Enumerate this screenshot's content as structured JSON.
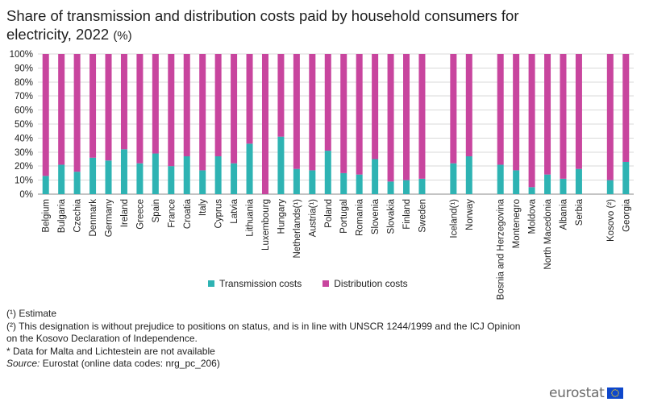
{
  "title": "Share of transmission and distribution costs paid by household consumers for electricity, 2022",
  "title_unit": "(%)",
  "chart_data": {
    "type": "bar",
    "stacked": true,
    "title": "Share of transmission and distribution costs paid by household consumers for electricity, 2022 (%)",
    "ylim": [
      0,
      100
    ],
    "y_ticks": [
      "0%",
      "10%",
      "20%",
      "30%",
      "40%",
      "50%",
      "60%",
      "70%",
      "80%",
      "90%",
      "100%"
    ],
    "categories": [
      "Belgium",
      "Bulgaria",
      "Czechia",
      "Denmark",
      "Germany",
      "Ireland",
      "Greece",
      "Spain",
      "France",
      "Croatia",
      "Italy",
      "Cyprus",
      "Latvia",
      "Lithuania",
      "Luxembourg",
      "Hungary",
      "Netherlands(¹)",
      "Austria(¹)",
      "Poland",
      "Portugal",
      "Romania",
      "Slovenia",
      "Slovakia",
      "Finland",
      "Sweden",
      "",
      "Iceland(¹)",
      "Norway",
      "",
      "Bosnia and Herzegovina",
      "Montenegro",
      "Moldova",
      "North Macedonia",
      "Albania",
      "Serbia",
      "",
      "Kosovo (²)",
      "Georgia"
    ],
    "series": [
      {
        "name": "Transmission costs",
        "color": "#2eb3b3",
        "values": [
          13,
          21,
          16,
          26,
          24,
          32,
          22,
          29,
          20,
          27,
          17,
          27,
          22,
          36,
          0,
          41,
          18,
          17,
          31,
          15,
          14,
          25,
          9,
          10,
          11,
          null,
          22,
          27,
          null,
          21,
          17,
          5,
          14,
          11,
          18,
          null,
          10,
          23
        ]
      },
      {
        "name": "Distribution costs",
        "color": "#c8459e",
        "values": [
          87,
          79,
          84,
          74,
          76,
          68,
          78,
          71,
          80,
          73,
          83,
          73,
          78,
          64,
          100,
          59,
          82,
          83,
          69,
          85,
          86,
          75,
          91,
          90,
          89,
          null,
          78,
          73,
          null,
          79,
          83,
          95,
          86,
          89,
          82,
          null,
          90,
          77
        ]
      }
    ],
    "legend_position": "bottom"
  },
  "notes": {
    "note1": "(¹) Estimate",
    "note2": "(²) This designation is without prejudice to positions on status, and is in line with UNSCR 1244/1999 and the ICJ Opinion on the Kosovo Declaration of Independence.",
    "note3": "* Data for Malta and Lichtestein are not available",
    "source_label": "Source:",
    "source_text": " Eurostat (online data codes: nrg_pc_206)"
  },
  "logo": {
    "text": "eurostat",
    "flag_color": "#0e47cb",
    "star_color": "#ffd617"
  }
}
